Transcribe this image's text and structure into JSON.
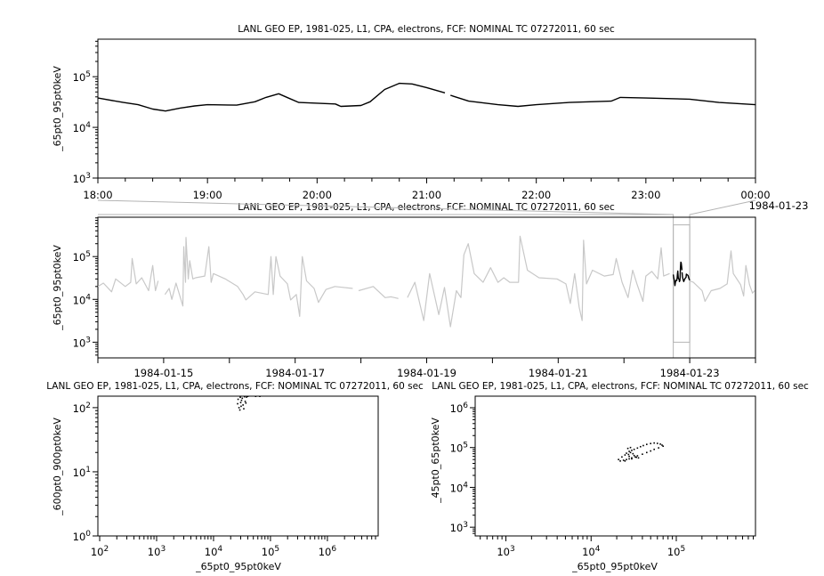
{
  "colors": {
    "primary": "#000000",
    "context": "#c8c8c8",
    "zoom_box": "#b4b4b4"
  },
  "chart_data": [
    {
      "id": "top",
      "type": "line",
      "title": "LANL GEO EP, 1981-025, L1, CPA, electrons, FCF: NOMINAL TC 07272011, 60 sec",
      "xlabel": "",
      "ylabel": "_65pt0_95pt0keV",
      "yscale": "log",
      "ylim": [
        1000,
        550000
      ],
      "xlim": [
        "1984-01-22T18:00",
        "1984-01-23T00:00"
      ],
      "xtick_labels": [
        "18:00",
        "19:00",
        "20:00",
        "21:00",
        "22:00",
        "23:00",
        "00:00"
      ],
      "xtick_extra_label": "1984-01-23",
      "ytick_labels": [
        "10^3",
        "10^4",
        "10^5"
      ],
      "series": [
        {
          "segments": [
            [
              [
                "1984-01-22T18:00",
                38000
              ],
              [
                "1984-01-22T18:14",
                31000
              ],
              [
                "1984-01-22T18:22",
                28000
              ],
              [
                "1984-01-22T18:30",
                23000
              ],
              [
                "1984-01-22T18:37",
                21000
              ],
              [
                "1984-01-22T18:45",
                24000
              ],
              [
                "1984-01-22T18:53",
                26500
              ],
              [
                "1984-01-22T19:00",
                28000
              ],
              [
                "1984-01-22T19:16",
                27500
              ],
              [
                "1984-01-22T19:26",
                32000
              ],
              [
                "1984-01-22T19:32",
                39000
              ],
              [
                "1984-01-22T19:39",
                46000
              ],
              [
                "1984-01-22T19:45",
                37000
              ],
              [
                "1984-01-22T19:50",
                31000
              ],
              [
                "1984-01-22T20:00",
                30000
              ],
              [
                "1984-01-22T20:10",
                29000
              ],
              [
                "1984-01-22T20:13",
                26000
              ],
              [
                "1984-01-22T20:24",
                27000
              ],
              [
                "1984-01-22T20:29",
                32000
              ],
              [
                "1984-01-22T20:37",
                56000
              ],
              [
                "1984-01-22T20:45",
                74000
              ],
              [
                "1984-01-22T20:52",
                72000
              ],
              [
                "1984-01-22T21:00",
                61000
              ],
              [
                "1984-01-22T21:10",
                48000
              ]
            ],
            [
              [
                "1984-01-22T21:13",
                43000
              ],
              [
                "1984-01-22T21:23",
                33000
              ],
              [
                "1984-01-22T21:39",
                28000
              ],
              [
                "1984-01-22T21:50",
                26000
              ],
              [
                "1984-01-22T22:00",
                28000
              ],
              [
                "1984-01-22T22:18",
                31000
              ],
              [
                "1984-01-22T22:41",
                33000
              ],
              [
                "1984-01-22T22:46",
                39000
              ],
              [
                "1984-01-22T23:00",
                38000
              ],
              [
                "1984-01-22T23:24",
                36000
              ],
              [
                "1984-01-22T23:40",
                31000
              ],
              [
                "1984-01-23T00:00",
                28000
              ]
            ]
          ]
        }
      ]
    },
    {
      "id": "overview",
      "type": "line",
      "title": "LANL GEO EP, 1981-025, L1, CPA, electrons, FCF: NOMINAL TC 07272011, 60 sec",
      "xlabel": "",
      "ylabel": "_65pt0_95pt0keV",
      "yscale": "log",
      "ylim": [
        430,
        830000
      ],
      "xlim": [
        "1984-01-14T00:00",
        "1984-01-24T00:00"
      ],
      "xtick_labels": [
        "1984-01-15",
        "1984-01-17",
        "1984-01-19",
        "1984-01-21",
        "1984-01-23"
      ],
      "ytick_labels": [
        "10^3",
        "10^4",
        "10^5"
      ],
      "highlight": [
        "1984-01-22T18:00",
        "1984-01-23T00:00"
      ],
      "series": [
        {
          "role": "context",
          "segments": [
            [
              [
                "1984-01-14T00:00",
                20000
              ],
              [
                "1984-01-14T02:00",
                24000
              ],
              [
                "1984-01-14T05:00",
                15000
              ],
              [
                "1984-01-14T06:30",
                30000
              ],
              [
                "1984-01-14T10:00",
                20000
              ],
              [
                "1984-01-14T12:00",
                25000
              ],
              [
                "1984-01-14T12:30",
                90000
              ],
              [
                "1984-01-14T14:00",
                23000
              ],
              [
                "1984-01-14T16:00",
                32000
              ],
              [
                "1984-01-14T18:30",
                16000
              ],
              [
                "1984-01-14T20:00",
                62000
              ],
              [
                "1984-01-14T21:00",
                16000
              ],
              [
                "1984-01-14T22:00",
                27000
              ]
            ],
            [
              [
                "1984-01-15T00:30",
                13000
              ],
              [
                "1984-01-15T02:00",
                18000
              ],
              [
                "1984-01-15T03:00",
                10000
              ],
              [
                "1984-01-15T04:30",
                24000
              ],
              [
                "1984-01-15T07:00",
                7000
              ],
              [
                "1984-01-15T07:20",
                170000
              ],
              [
                "1984-01-15T08:00",
                25000
              ],
              [
                "1984-01-15T08:10",
                280000
              ],
              [
                "1984-01-15T09:00",
                30000
              ],
              [
                "1984-01-15T09:30",
                80000
              ],
              [
                "1984-01-15T10:40",
                30000
              ],
              [
                "1984-01-15T11:40",
                32000
              ],
              [
                "1984-01-15T15:00",
                35000
              ],
              [
                "1984-01-15T16:30",
                170000
              ],
              [
                "1984-01-15T17:20",
                25000
              ],
              [
                "1984-01-15T18:10",
                40000
              ],
              [
                "1984-01-15T22:30",
                30000
              ],
              [
                "1984-01-16T03:00",
                20000
              ],
              [
                "1984-01-16T05:00",
                13000
              ],
              [
                "1984-01-16T06:00",
                9700
              ],
              [
                "1984-01-16T09:20",
                15000
              ],
              [
                "1984-01-16T14:10",
                13000
              ],
              [
                "1984-01-16T15:10",
                100000
              ],
              [
                "1984-01-16T16:00",
                13000
              ],
              [
                "1984-01-16T17:00",
                100000
              ],
              [
                "1984-01-16T18:30",
                35000
              ],
              [
                "1984-01-16T21:10",
                23000
              ],
              [
                "1984-01-16T22:20",
                9700
              ],
              [
                "1984-01-17T00:25",
                13000
              ],
              [
                "1984-01-17T01:40",
                4000
              ],
              [
                "1984-01-17T02:35",
                100000
              ],
              [
                "1984-01-17T04:10",
                27000
              ],
              [
                "1984-01-17T06:55",
                18000
              ],
              [
                "1984-01-17T08:30",
                8500
              ],
              [
                "1984-01-17T11:15",
                17000
              ],
              [
                "1984-01-17T14:30",
                20000
              ],
              [
                "1984-01-17T21:00",
                18000
              ]
            ],
            [
              [
                "1984-01-17T23:10",
                16000
              ],
              [
                "1984-01-18T04:30",
                20000
              ],
              [
                "1984-01-18T08:50",
                11000
              ],
              [
                "1984-01-18T11:00",
                11500
              ],
              [
                "1984-01-18T13:40",
                10500
              ]
            ],
            [
              [
                "1984-01-18T17:00",
                11000
              ],
              [
                "1984-01-18T19:40",
                25000
              ],
              [
                "1984-01-18T22:55",
                3200
              ],
              [
                "1984-01-19T01:05",
                40000
              ],
              [
                "1984-01-19T04:25",
                4400
              ],
              [
                "1984-01-19T06:30",
                19000
              ],
              [
                "1984-01-19T08:40",
                2300
              ],
              [
                "1984-01-19T10:50",
                16000
              ],
              [
                "1984-01-19T12:30",
                11000
              ],
              [
                "1984-01-19T13:35",
                110000
              ],
              [
                "1984-01-19T15:10",
                200000
              ],
              [
                "1984-01-19T17:20",
                40000
              ],
              [
                "1984-01-19T20:35",
                25000
              ],
              [
                "1984-01-19T23:20",
                55000
              ],
              [
                "1984-01-20T02:00",
                25000
              ],
              [
                "1984-01-20T04:10",
                32000
              ],
              [
                "1984-01-20T06:20",
                25000
              ],
              [
                "1984-01-20T09:30",
                25000
              ],
              [
                "1984-01-20T10:05",
                300000
              ],
              [
                "1984-01-20T12:45",
                48000
              ],
              [
                "1984-01-20T17:00",
                32000
              ],
              [
                "1984-01-20T23:35",
                30000
              ],
              [
                "1984-01-21T02:50",
                23000
              ],
              [
                "1984-01-21T04:25",
                8000
              ],
              [
                "1984-01-21T06:00",
                40000
              ],
              [
                "1984-01-21T07:40",
                6500
              ],
              [
                "1984-01-21T08:45",
                3200
              ],
              [
                "1984-01-21T09:15",
                240000
              ],
              [
                "1984-01-21T10:20",
                23000
              ],
              [
                "1984-01-21T12:30",
                48000
              ],
              [
                "1984-01-21T16:50",
                35000
              ],
              [
                "1984-01-21T20:05",
                38000
              ],
              [
                "1984-01-21T21:10",
                90000
              ],
              [
                "1984-01-21T23:20",
                25000
              ],
              [
                "1984-01-22T01:30",
                11000
              ],
              [
                "1984-01-22T03:10",
                48000
              ],
              [
                "1984-01-22T04:45",
                23000
              ],
              [
                "1984-01-22T06:55",
                9000
              ],
              [
                "1984-01-22T08:00",
                35000
              ],
              [
                "1984-01-22T10:10",
                45000
              ],
              [
                "1984-01-22T12:20",
                30000
              ],
              [
                "1984-01-22T13:35",
                160000
              ],
              [
                "1984-01-22T14:30",
                35000
              ],
              [
                "1984-01-22T16:40",
                40000
              ]
            ],
            [
              [
                "1984-01-23T00:00",
                27000
              ],
              [
                "1984-01-23T01:20",
                25000
              ],
              [
                "1984-01-23T04:30",
                16000
              ],
              [
                "1984-01-23T05:35",
                9000
              ],
              [
                "1984-01-23T07:50",
                16000
              ],
              [
                "1984-01-23T11:00",
                18000
              ],
              [
                "1984-01-23T13:40",
                23000
              ],
              [
                "1984-01-23T15:05",
                135000
              ],
              [
                "1984-01-23T15:55",
                40000
              ],
              [
                "1984-01-23T18:35",
                22000
              ],
              [
                "1984-01-23T19:40",
                12000
              ],
              [
                "1984-01-23T20:30",
                62000
              ],
              [
                "1984-01-23T21:50",
                22000
              ],
              [
                "1984-01-23T22:55",
                14000
              ],
              [
                "1984-01-23T23:40",
                16000
              ]
            ]
          ]
        },
        {
          "role": "focus",
          "same_as": "top"
        }
      ]
    },
    {
      "id": "scatter-left",
      "type": "scatter",
      "title": "LANL GEO EP, 1981-025, L1, CPA, electrons, FCF: NOMINAL TC 07272011, 60 sec",
      "xlabel": "_65pt0_95pt0keV",
      "ylabel": "_600pt0_900pt0keV",
      "xscale": "log",
      "yscale": "log",
      "xlim": [
        93,
        7800000
      ],
      "ylim": [
        1,
        151
      ],
      "xtick_labels": [
        "10^2",
        "10^3",
        "10^4",
        "10^5",
        "10^6"
      ],
      "ytick_labels": [
        "10^0",
        "10^1",
        "10^2"
      ],
      "points": [
        [
          28000,
          100
        ],
        [
          30000,
          120
        ],
        [
          32000,
          140
        ],
        [
          35000,
          148
        ],
        [
          29000,
          92
        ],
        [
          33000,
          110
        ],
        [
          38000,
          146
        ],
        [
          31000,
          130
        ],
        [
          40000,
          150
        ],
        [
          34000,
          96
        ],
        [
          27000,
          135
        ],
        [
          36000,
          125
        ],
        [
          30500,
          105
        ],
        [
          29500,
          145
        ],
        [
          37000,
          118
        ],
        [
          55000,
          150
        ],
        [
          65000,
          150
        ],
        [
          26500,
          115
        ]
      ]
    },
    {
      "id": "scatter-right",
      "type": "scatter",
      "title": "LANL GEO EP, 1981-025, L1, CPA, electrons, FCF: NOMINAL TC 07272011, 60 sec",
      "xlabel": "_65pt0_95pt0keV",
      "ylabel": "_45pt0_65pt0keV",
      "xscale": "log",
      "yscale": "log",
      "xlim": [
        436,
        850000
      ],
      "ylim": [
        603,
        1950000
      ],
      "xtick_labels": [
        "10^3",
        "10^4",
        "10^5"
      ],
      "ytick_labels": [
        "10^3",
        "10^4",
        "10^5",
        "10^6"
      ],
      "points": [
        [
          22000,
          46000
        ],
        [
          24000,
          48000
        ],
        [
          26000,
          50000
        ],
        [
          28000,
          52000
        ],
        [
          30000,
          55000
        ],
        [
          33000,
          58000
        ],
        [
          35000,
          62000
        ],
        [
          40000,
          68000
        ],
        [
          45000,
          75000
        ],
        [
          50000,
          82000
        ],
        [
          55000,
          90000
        ],
        [
          62000,
          98000
        ],
        [
          70000,
          108000
        ],
        [
          68000,
          115000
        ],
        [
          65000,
          122000
        ],
        [
          60000,
          127000
        ],
        [
          55000,
          130000
        ],
        [
          50000,
          126000
        ],
        [
          45000,
          120000
        ],
        [
          41000,
          112000
        ],
        [
          38000,
          105000
        ],
        [
          35000,
          97000
        ],
        [
          32000,
          90000
        ],
        [
          30000,
          85000
        ],
        [
          28000,
          80000
        ],
        [
          26000,
          72000
        ],
        [
          25000,
          65000
        ],
        [
          23000,
          58000
        ],
        [
          21000,
          50000
        ],
        [
          28000,
          60000
        ],
        [
          31000,
          70000
        ],
        [
          30000,
          52000
        ],
        [
          34000,
          57000
        ],
        [
          27000,
          95000
        ],
        [
          29000,
          100000
        ],
        [
          36000,
          55000
        ],
        [
          25000,
          46000
        ],
        [
          27500,
          67000
        ],
        [
          32000,
          63000
        ],
        [
          29000,
          75000
        ]
      ]
    }
  ]
}
